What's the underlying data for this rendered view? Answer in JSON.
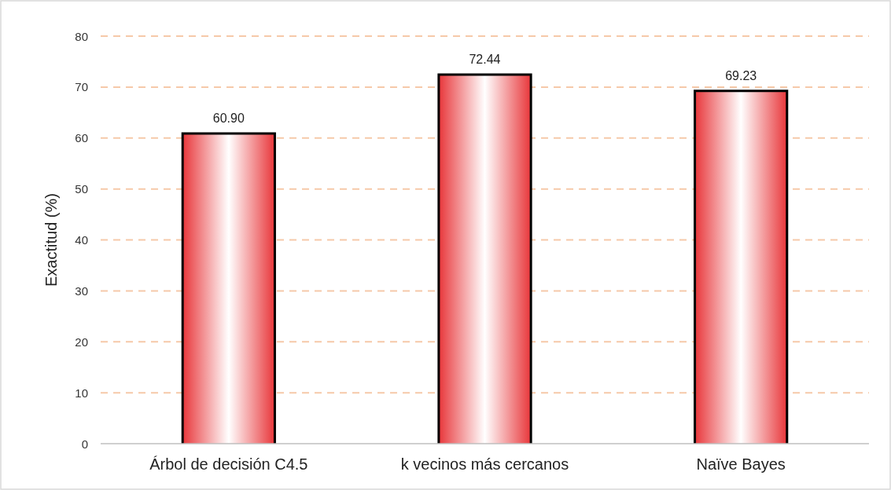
{
  "chart_data": {
    "type": "bar",
    "ylabel": "Exactitud (%)",
    "categories": [
      "Árbol de decisión C4.5",
      "k vecinos más cercanos",
      "Naïve Bayes"
    ],
    "values": [
      60.9,
      72.44,
      69.23
    ],
    "color": "#e8363a",
    "ylim": [
      0,
      80
    ],
    "yticks": [
      0,
      10,
      20,
      30,
      40,
      50,
      60,
      70,
      80
    ],
    "grid": "y",
    "value_labels": [
      "60.90",
      "72.44",
      "69.23"
    ]
  }
}
